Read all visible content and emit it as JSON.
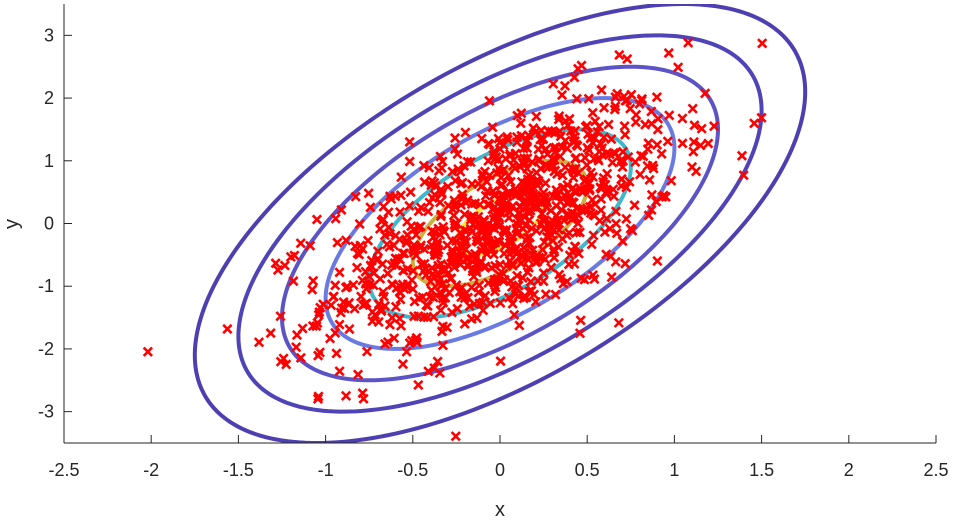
{
  "chart_data": {
    "type": "scatter",
    "xlabel": "x",
    "ylabel": "y",
    "xlim": [
      -2.5,
      2.5
    ],
    "ylim": [
      -3.5,
      3.5
    ],
    "x_ticks": [
      "-2.5",
      "-2",
      "-1.5",
      "-1",
      "-0.5",
      "0",
      "0.5",
      "1",
      "1.5",
      "2",
      "2.5"
    ],
    "y_ticks": [
      "-3",
      "-2",
      "-1",
      "0",
      "1",
      "2",
      "3"
    ],
    "grid": false,
    "legend": "none",
    "scatter_color": "#ff0000",
    "marker": "x",
    "distribution": {
      "mean": [
        0,
        0
      ],
      "std_x": 0.5,
      "std_y": 1.0,
      "correlation": 0.6,
      "point_count": 1000
    },
    "contours": [
      {
        "level_sigma": 0.5,
        "color": "#ffe61a"
      },
      {
        "level_sigma": 1.0,
        "color": "#c8a82a"
      },
      {
        "level_sigma": 1.5,
        "color": "#2ab0c8"
      },
      {
        "level_sigma": 2.0,
        "color": "#5a6be0"
      },
      {
        "level_sigma": 2.5,
        "color": "#4a40c0"
      },
      {
        "level_sigma": 3.0,
        "color": "#3c2fb0"
      },
      {
        "level_sigma": 3.5,
        "color": "#3a2aa8"
      }
    ]
  }
}
